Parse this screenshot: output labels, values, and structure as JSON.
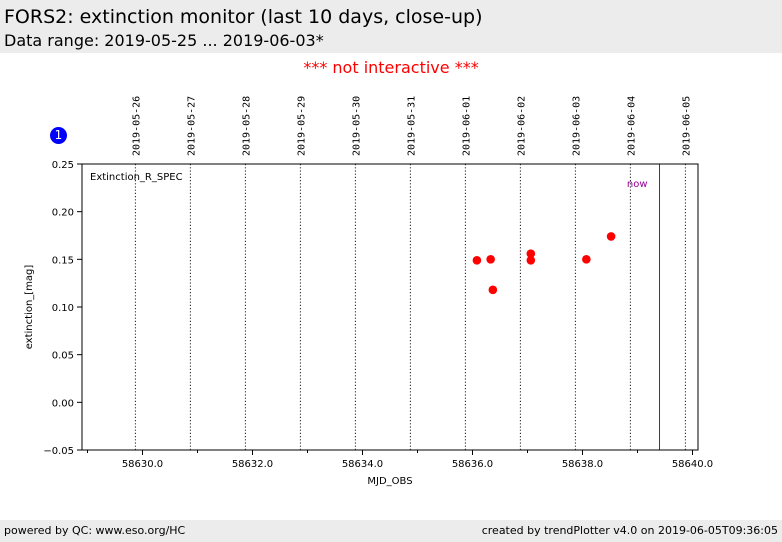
{
  "header": {
    "title": "FORS2: extinction monitor (last 10 days, close-up)",
    "subtitle": "Data range: 2019-05-25 ... 2019-06-03*"
  },
  "notice": "*** not interactive ***",
  "info_icon": {
    "label": "1",
    "color": "#0000ff"
  },
  "footer": {
    "left": "powered by QC: www.eso.org/HC",
    "right": "created by trendPlotter v4.0 on 2019-06-05T09:36:05"
  },
  "chart_data": {
    "type": "scatter",
    "xlabel": "MJD_OBS",
    "ylabel": "extinction_[mag]",
    "xlim": [
      58628.9,
      58640.1
    ],
    "ylim": [
      -0.05,
      0.25
    ],
    "x_ticks": [
      {
        "value": 58630.0,
        "label": "58630.0"
      },
      {
        "value": 58632.0,
        "label": "58632.0"
      },
      {
        "value": 58634.0,
        "label": "58634.0"
      },
      {
        "value": 58636.0,
        "label": "58636.0"
      },
      {
        "value": 58638.0,
        "label": "58638.0"
      },
      {
        "value": 58640.0,
        "label": "58640.0"
      }
    ],
    "x_minor_ticks": [
      58629.0,
      58631.0,
      58633.0,
      58635.0,
      58637.0,
      58639.0
    ],
    "y_ticks": [
      {
        "value": -0.05,
        "label": "−0.05"
      },
      {
        "value": 0.0,
        "label": "0.00"
      },
      {
        "value": 0.05,
        "label": "0.05"
      },
      {
        "value": 0.1,
        "label": "0.10"
      },
      {
        "value": 0.15,
        "label": "0.15"
      },
      {
        "value": 0.2,
        "label": "0.20"
      },
      {
        "value": 0.25,
        "label": "0.25"
      }
    ],
    "date_lines": [
      {
        "mjd": 58629.87,
        "label": "2019-05-26"
      },
      {
        "mjd": 58630.87,
        "label": "2019-05-27"
      },
      {
        "mjd": 58631.87,
        "label": "2019-05-28"
      },
      {
        "mjd": 58632.87,
        "label": "2019-05-29"
      },
      {
        "mjd": 58633.87,
        "label": "2019-05-30"
      },
      {
        "mjd": 58634.87,
        "label": "2019-05-31"
      },
      {
        "mjd": 58635.87,
        "label": "2019-06-01"
      },
      {
        "mjd": 58636.87,
        "label": "2019-06-02"
      },
      {
        "mjd": 58637.87,
        "label": "2019-06-03"
      },
      {
        "mjd": 58638.87,
        "label": "2019-06-04"
      },
      {
        "mjd": 58639.87,
        "label": "2019-06-05"
      }
    ],
    "now": {
      "mjd": 58639.4,
      "label": "now",
      "color": "#990099"
    },
    "series": [
      {
        "name": "Extinction_R_SPEC",
        "color": "#ff0000",
        "points": [
          {
            "x": 58636.08,
            "y": 0.149
          },
          {
            "x": 58636.33,
            "y": 0.15
          },
          {
            "x": 58636.37,
            "y": 0.118
          },
          {
            "x": 58637.06,
            "y": 0.156
          },
          {
            "x": 58637.06,
            "y": 0.149
          },
          {
            "x": 58638.07,
            "y": 0.15
          },
          {
            "x": 58638.52,
            "y": 0.174
          }
        ]
      }
    ],
    "legend_position": "top-left",
    "grid": false
  }
}
